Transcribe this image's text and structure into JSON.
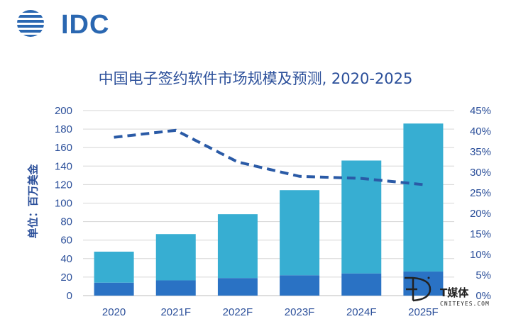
{
  "logo": {
    "text": "IDC"
  },
  "chart_data": {
    "type": "bar",
    "title": "中国电子签约软件市场规模及预测, 2020-2025",
    "ylabel": "单位：百万美金",
    "categories": [
      "2020",
      "2021F",
      "2022F",
      "2023F",
      "2024F",
      "2025F"
    ],
    "series": [
      {
        "values": [
          14,
          16.5,
          19,
          22,
          24,
          26
        ],
        "color": "#2a72c4"
      },
      {
        "values": [
          33.5,
          50,
          69,
          92,
          122,
          160
        ],
        "color": "#37aed2"
      }
    ],
    "totals": [
      47.5,
      66.5,
      88,
      114,
      146,
      186
    ],
    "line": {
      "values": [
        38.5,
        40.2,
        32.5,
        29.0,
        28.5,
        27.0
      ],
      "color": "#2a5aa6",
      "style": "dashed"
    },
    "ylim": [
      0,
      200
    ],
    "yticks": [
      "0",
      "20",
      "40",
      "60",
      "80",
      "100",
      "120",
      "140",
      "160",
      "180",
      "200"
    ],
    "y2lim": [
      0,
      45
    ],
    "y2ticks": [
      "0%",
      "5%",
      "10%",
      "15%",
      "20%",
      "25%",
      "30%",
      "35%",
      "40%",
      "45%"
    ],
    "grid": true,
    "stacked": true
  },
  "watermark": {
    "main": "T媒体",
    "sub": "CNITEYES.COM"
  }
}
